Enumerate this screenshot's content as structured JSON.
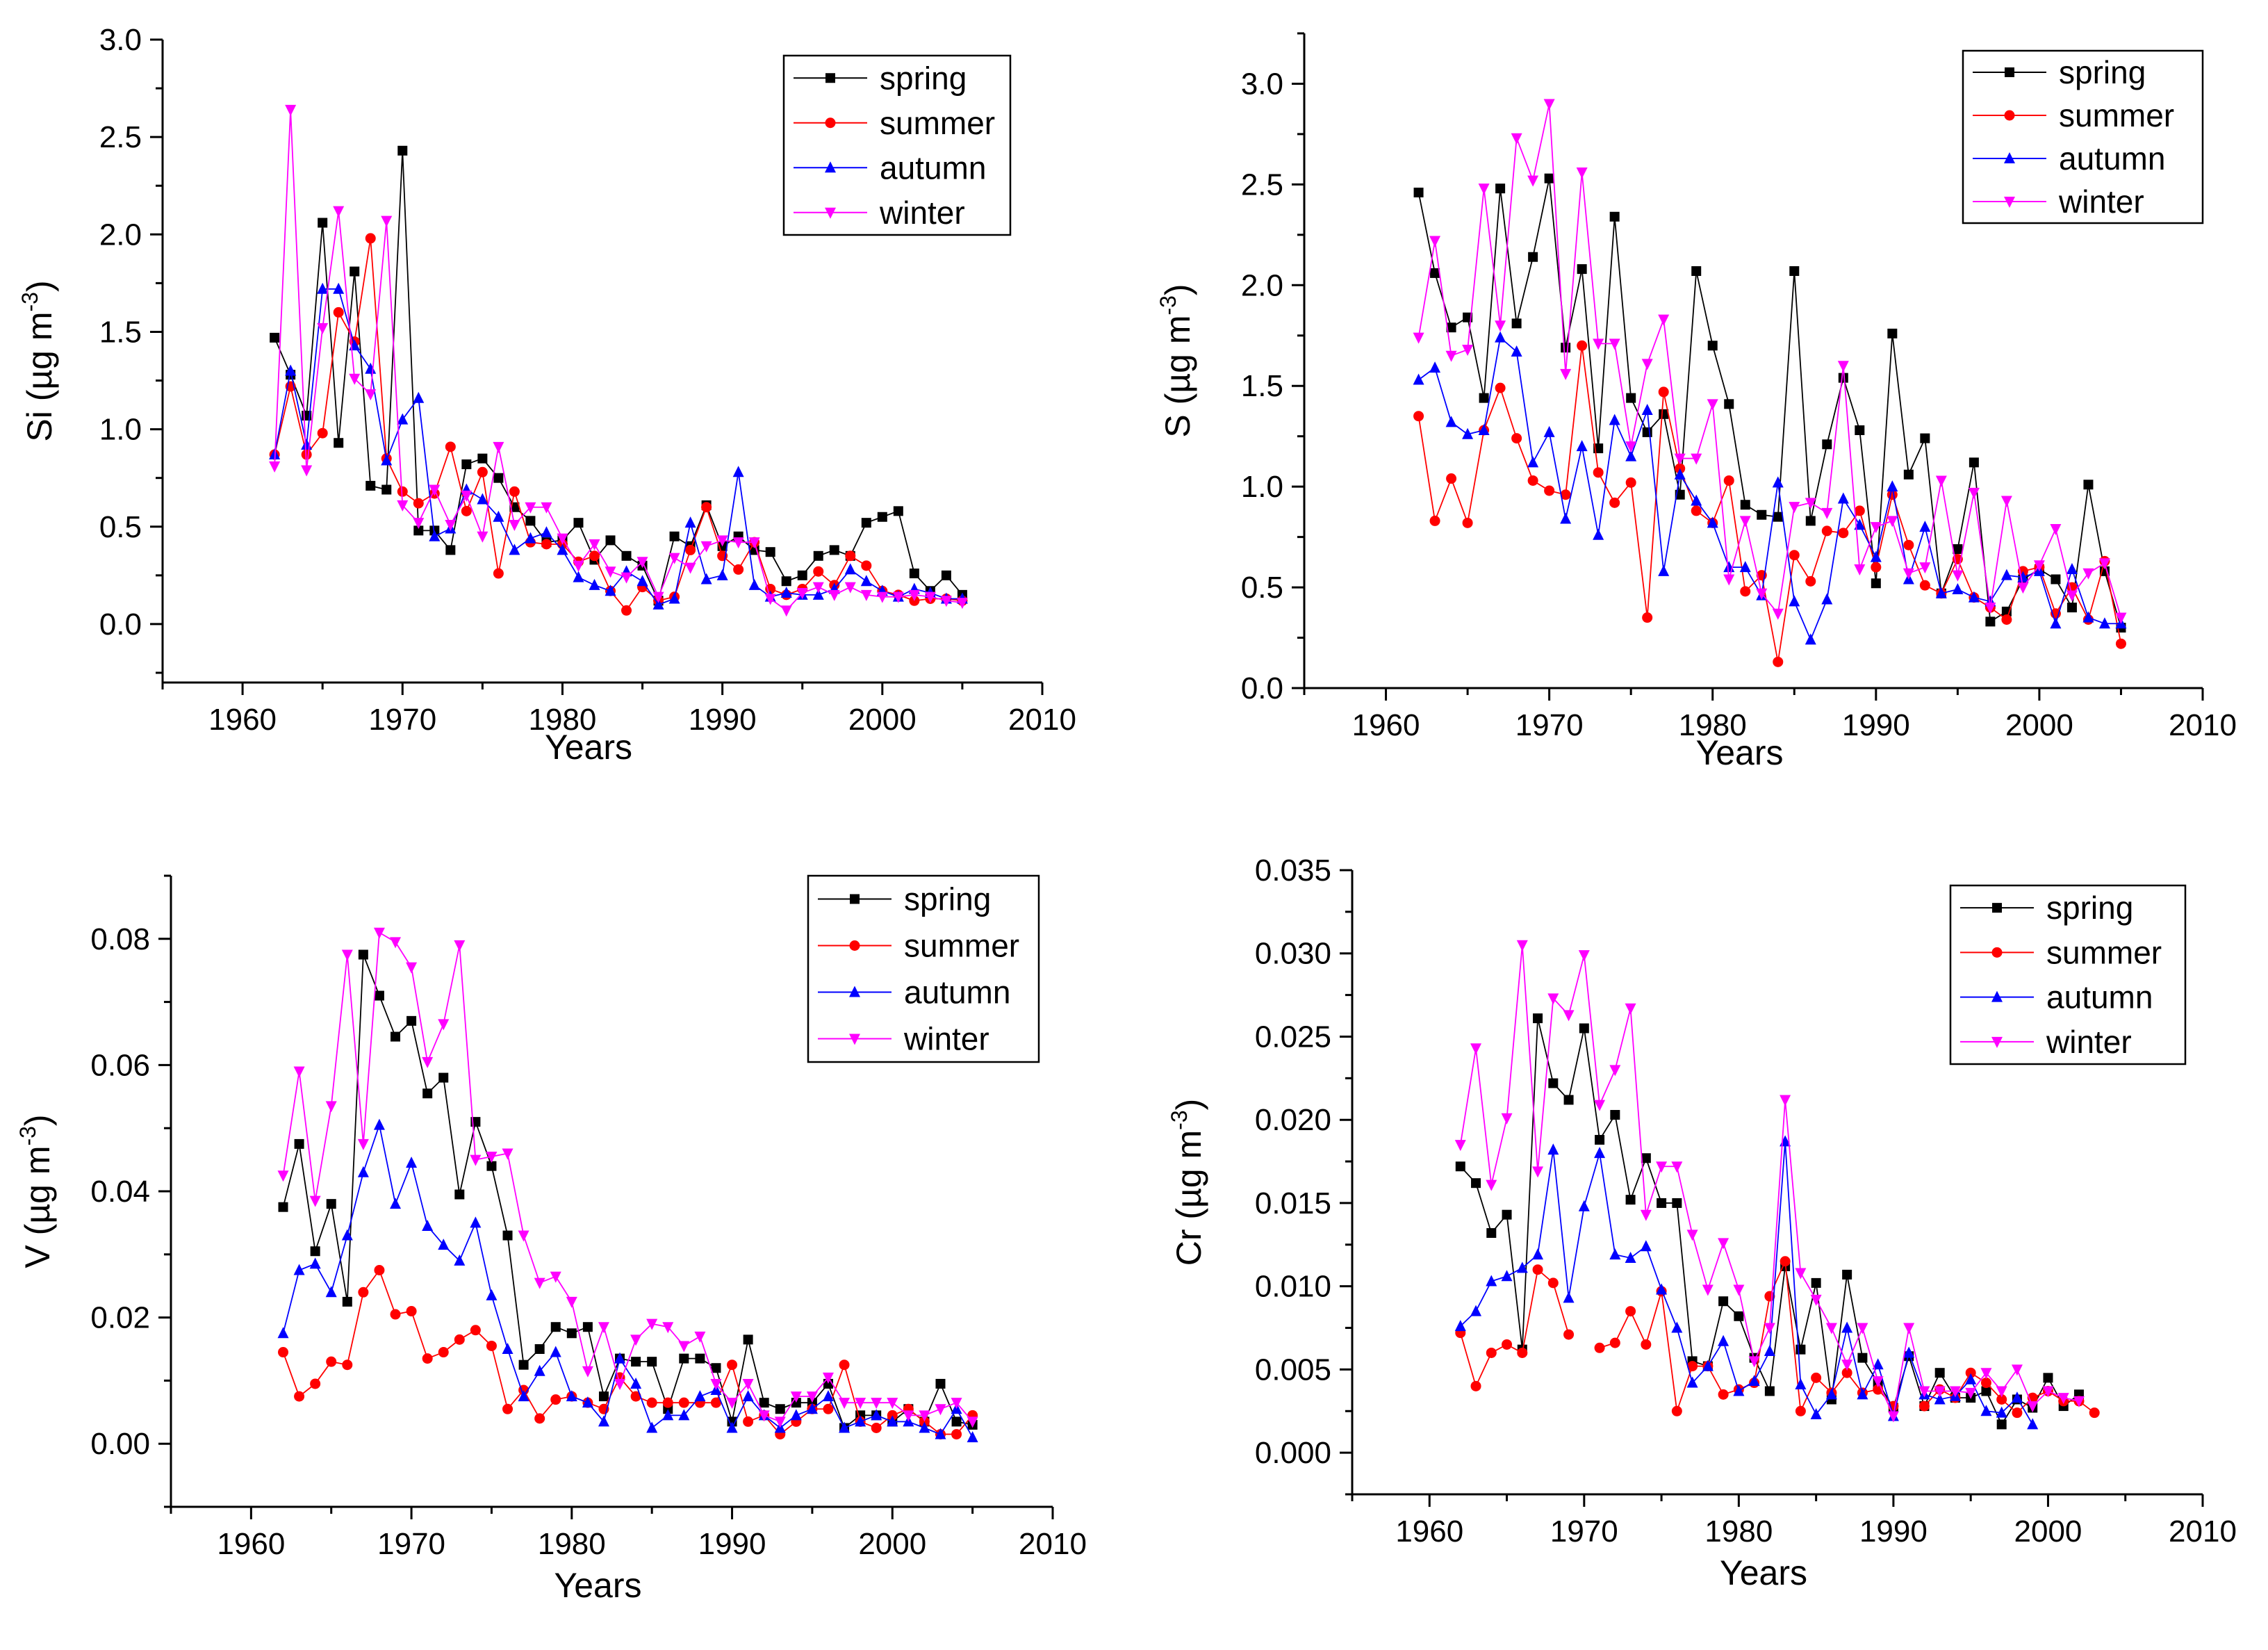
{
  "chart_data": [
    {
      "type": "line",
      "ylabel_main": "Si (µg m",
      "ylabel_sup": "-3",
      "ylabel_close": ")",
      "xlabel": "Years",
      "xlim": [
        1955,
        2010
      ],
      "ylim": [
        -0.3,
        3.0
      ],
      "xticks": [
        "1960",
        "1970",
        "1980",
        "1990",
        "2000",
        "2010"
      ],
      "yticks": [
        "0.0",
        "0.5",
        "1.0",
        "1.5",
        "2.0",
        "2.5",
        "3.0"
      ],
      "legend": [
        "spring",
        "summer",
        "autumn",
        "winter"
      ],
      "legend_position": "top-right",
      "x": [
        1962,
        1963,
        1964,
        1965,
        1966,
        1967,
        1968,
        1969,
        1970,
        1971,
        1972,
        1973,
        1974,
        1975,
        1976,
        1977,
        1978,
        1979,
        1980,
        1981,
        1982,
        1983,
        1984,
        1985,
        1986,
        1987,
        1988,
        1989,
        1990,
        1991,
        1992,
        1993,
        1994,
        1995,
        1996,
        1997,
        1998,
        1999,
        2000,
        2001,
        2002,
        2003,
        2004,
        2005
      ],
      "series": [
        {
          "name": "spring",
          "values": [
            1.47,
            1.28,
            1.07,
            2.06,
            0.93,
            1.81,
            0.71,
            0.69,
            2.43,
            0.48,
            0.48,
            0.38,
            0.82,
            0.85,
            0.75,
            0.6,
            0.53,
            0.42,
            0.43,
            0.52,
            0.33,
            0.43,
            0.35,
            0.3,
            0.12,
            0.45,
            0.4,
            0.61,
            0.4,
            0.45,
            0.38,
            0.37,
            0.22,
            0.25,
            0.35,
            0.38,
            0.35,
            0.52,
            0.55,
            0.58,
            0.26,
            0.17,
            0.25,
            0.15
          ]
        },
        {
          "name": "summer",
          "values": [
            0.87,
            1.22,
            0.87,
            0.98,
            1.6,
            1.45,
            1.98,
            0.85,
            0.68,
            0.62,
            0.67,
            0.91,
            0.58,
            0.78,
            0.26,
            0.68,
            0.42,
            0.41,
            0.41,
            0.32,
            0.35,
            0.17,
            0.07,
            0.19,
            0.12,
            0.14,
            0.38,
            0.6,
            0.35,
            0.28,
            0.42,
            0.18,
            0.15,
            0.18,
            0.27,
            0.2,
            0.35,
            0.3,
            0.17,
            0.15,
            0.12,
            0.13,
            0.13,
            0.12
          ]
        },
        {
          "name": "autumn",
          "values": [
            0.87,
            1.3,
            0.92,
            1.72,
            1.72,
            1.43,
            1.31,
            0.84,
            1.05,
            1.16,
            0.45,
            0.49,
            0.69,
            0.64,
            0.55,
            0.38,
            0.44,
            0.47,
            0.38,
            0.24,
            0.2,
            0.17,
            0.27,
            0.22,
            0.1,
            0.13,
            0.52,
            0.23,
            0.25,
            0.78,
            0.2,
            0.14,
            0.16,
            0.15,
            0.15,
            0.18,
            0.28,
            0.22,
            0.17,
            0.14,
            0.18,
            0.16,
            0.13,
            0.13
          ]
        },
        {
          "name": "winter",
          "values": [
            0.81,
            2.64,
            0.79,
            1.52,
            2.12,
            1.26,
            1.18,
            2.07,
            0.61,
            0.52,
            0.69,
            0.51,
            0.66,
            0.45,
            0.91,
            0.51,
            0.6,
            0.6,
            0.44,
            0.3,
            0.41,
            0.27,
            0.24,
            0.32,
            0.14,
            0.34,
            0.29,
            0.4,
            0.43,
            0.42,
            0.42,
            0.13,
            0.07,
            0.16,
            0.19,
            0.15,
            0.19,
            0.15,
            0.14,
            0.14,
            0.15,
            0.14,
            0.12,
            0.11
          ]
        }
      ]
    },
    {
      "type": "line",
      "ylabel_main": "S (µg m",
      "ylabel_sup": "-3",
      "ylabel_close": ")",
      "xlabel": "Years",
      "xlim": [
        1955,
        2010
      ],
      "ylim": [
        0.0,
        3.25
      ],
      "xticks": [
        "1960",
        "1970",
        "1980",
        "1990",
        "2000",
        "2010"
      ],
      "yticks": [
        "0.0",
        "0.5",
        "1.0",
        "1.5",
        "2.0",
        "2.5",
        "3.0"
      ],
      "legend": [
        "spring",
        "summer",
        "autumn",
        "winter"
      ],
      "legend_position": "top-right",
      "x": [
        1962,
        1963,
        1964,
        1965,
        1966,
        1967,
        1968,
        1969,
        1970,
        1971,
        1972,
        1973,
        1974,
        1975,
        1976,
        1977,
        1978,
        1979,
        1980,
        1981,
        1982,
        1983,
        1984,
        1985,
        1986,
        1987,
        1988,
        1989,
        1990,
        1991,
        1992,
        1993,
        1994,
        1995,
        1996,
        1997,
        1998,
        1999,
        2000,
        2001,
        2002,
        2003,
        2004,
        2005
      ],
      "series": [
        {
          "name": "spring",
          "values": [
            2.46,
            2.06,
            1.79,
            1.84,
            1.44,
            2.48,
            1.81,
            2.14,
            2.53,
            1.69,
            2.08,
            1.19,
            2.34,
            1.44,
            1.27,
            1.36,
            0.96,
            2.07,
            1.7,
            1.41,
            0.91,
            0.86,
            0.85,
            2.07,
            0.83,
            1.21,
            1.54,
            1.28,
            0.52,
            1.76,
            1.06,
            1.24,
            0.47,
            0.69,
            1.12,
            0.33,
            0.38,
            0.54,
            0.59,
            0.54,
            0.4,
            1.01,
            0.58,
            0.3
          ]
        },
        {
          "name": "summer",
          "values": [
            1.35,
            0.83,
            1.04,
            0.82,
            1.28,
            1.49,
            1.24,
            1.03,
            0.98,
            0.96,
            1.7,
            1.07,
            0.92,
            1.02,
            0.35,
            1.47,
            1.09,
            0.88,
            0.82,
            1.03,
            0.48,
            0.56,
            0.13,
            0.66,
            0.53,
            0.78,
            0.77,
            0.88,
            0.6,
            0.96,
            0.71,
            0.51,
            0.47,
            0.64,
            0.45,
            0.4,
            0.34,
            0.58,
            0.6,
            0.37,
            0.5,
            0.34,
            0.63,
            0.22
          ]
        },
        {
          "name": "autumn",
          "values": [
            1.53,
            1.59,
            1.32,
            1.26,
            1.28,
            1.74,
            1.67,
            1.12,
            1.27,
            0.84,
            1.2,
            0.76,
            1.33,
            1.15,
            1.38,
            0.58,
            1.06,
            0.93,
            0.82,
            0.6,
            0.6,
            0.46,
            1.02,
            0.43,
            0.24,
            0.44,
            0.94,
            0.81,
            0.65,
            1.0,
            0.54,
            0.8,
            0.47,
            0.49,
            0.45,
            0.43,
            0.56,
            0.55,
            0.58,
            0.32,
            0.59,
            0.35,
            0.32,
            0.32
          ]
        },
        {
          "name": "winter",
          "values": [
            1.74,
            2.22,
            1.65,
            1.68,
            2.48,
            1.8,
            2.73,
            2.52,
            2.9,
            1.56,
            2.56,
            1.71,
            1.71,
            1.2,
            1.61,
            1.83,
            1.14,
            1.14,
            1.41,
            0.54,
            0.83,
            0.47,
            0.37,
            0.9,
            0.92,
            0.87,
            1.6,
            0.59,
            0.8,
            0.83,
            0.57,
            0.6,
            1.03,
            0.56,
            0.97,
            0.4,
            0.93,
            0.5,
            0.61,
            0.79,
            0.46,
            0.57,
            0.62,
            0.35
          ]
        }
      ]
    },
    {
      "type": "line",
      "ylabel_main": "V (µg m",
      "ylabel_sup": "-3",
      "ylabel_close": ")",
      "xlabel": "Years",
      "xlim": [
        1955,
        2010
      ],
      "ylim": [
        -0.01,
        0.09
      ],
      "xticks": [
        "1960",
        "1970",
        "1980",
        "1990",
        "2000",
        "2010"
      ],
      "yticks": [
        "0.00",
        "0.02",
        "0.04",
        "0.06",
        "0.08"
      ],
      "legend": [
        "spring",
        "summer",
        "autumn",
        "winter"
      ],
      "legend_position": "top-right",
      "x": [
        1962,
        1963,
        1964,
        1965,
        1966,
        1967,
        1968,
        1969,
        1970,
        1971,
        1972,
        1973,
        1974,
        1975,
        1976,
        1977,
        1978,
        1979,
        1980,
        1981,
        1982,
        1983,
        1984,
        1985,
        1986,
        1987,
        1988,
        1989,
        1990,
        1991,
        1992,
        1993,
        1994,
        1995,
        1996,
        1997,
        1998,
        1999,
        2000,
        2001,
        2002,
        2003,
        2004,
        2005
      ],
      "series": [
        {
          "name": "spring",
          "values": [
            0.0375,
            0.0475,
            0.0305,
            0.038,
            0.0225,
            0.0775,
            0.071,
            0.0645,
            0.067,
            0.0555,
            0.058,
            0.0395,
            0.051,
            0.044,
            0.033,
            0.0125,
            0.015,
            0.0185,
            0.0175,
            0.0185,
            0.0075,
            0.0135,
            0.013,
            0.013,
            0.0055,
            0.0135,
            0.0135,
            0.012,
            0.0035,
            0.0165,
            0.0065,
            0.0055,
            0.0065,
            0.0065,
            0.0095,
            0.0025,
            0.0045,
            0.0045,
            0.0035,
            0.0055,
            0.0035,
            0.0095,
            0.0035,
            0.003
          ]
        },
        {
          "name": "summer",
          "values": [
            0.0145,
            0.0075,
            0.0095,
            0.013,
            0.0125,
            0.024,
            0.0275,
            0.0205,
            0.021,
            0.0135,
            0.0145,
            0.0165,
            0.018,
            0.0155,
            0.0055,
            0.0085,
            0.004,
            0.007,
            0.0075,
            0.0065,
            0.0055,
            0.0105,
            0.0075,
            0.0065,
            0.0065,
            0.0065,
            0.0065,
            0.0065,
            0.0125,
            0.0035,
            0.0045,
            0.0015,
            0.0035,
            0.0055,
            0.0055,
            0.0125,
            0.0035,
            0.0025,
            0.0045,
            0.0055,
            0.0035,
            0.0015,
            0.0015,
            0.0045
          ]
        },
        {
          "name": "autumn",
          "values": [
            0.0175,
            0.0275,
            0.0285,
            0.024,
            0.033,
            0.043,
            0.0505,
            0.038,
            0.0445,
            0.0345,
            0.0315,
            0.029,
            0.035,
            0.0235,
            0.015,
            0.0075,
            0.0115,
            0.0145,
            0.0075,
            0.0065,
            0.0035,
            0.0135,
            0.0095,
            0.0025,
            0.0045,
            0.0045,
            0.0075,
            0.0085,
            0.0025,
            0.0075,
            0.0045,
            0.0025,
            0.0045,
            0.0055,
            0.0075,
            0.0025,
            0.0035,
            0.0045,
            0.0035,
            0.0035,
            0.0025,
            0.0015,
            0.0055,
            0.001
          ]
        },
        {
          "name": "winter",
          "values": [
            0.0425,
            0.059,
            0.0385,
            0.0535,
            0.0775,
            0.0475,
            0.081,
            0.0795,
            0.0755,
            0.0605,
            0.0665,
            0.079,
            0.045,
            0.0455,
            0.046,
            0.033,
            0.0255,
            0.0265,
            0.0225,
            0.0115,
            0.0185,
            0.0095,
            0.0165,
            0.019,
            0.0185,
            0.0155,
            0.017,
            0.0095,
            0.0065,
            0.0095,
            0.0045,
            0.0035,
            0.0075,
            0.0075,
            0.0105,
            0.0065,
            0.0065,
            0.0065,
            0.0065,
            0.0045,
            0.0045,
            0.0055,
            0.0065,
            0.0035
          ]
        }
      ]
    },
    {
      "type": "line",
      "ylabel_main": "Cr (µg m",
      "ylabel_sup": "-3",
      "ylabel_close": ")",
      "xlabel": "Years",
      "xlim": [
        1955,
        2010
      ],
      "ylim": [
        -0.0025,
        0.035
      ],
      "xticks": [
        "1960",
        "1970",
        "1980",
        "1990",
        "2000",
        "2010"
      ],
      "yticks": [
        "0.000",
        "0.005",
        "0.010",
        "0.015",
        "0.020",
        "0.025",
        "0.030",
        "0.035"
      ],
      "legend": [
        "spring",
        "summer",
        "autumn",
        "winter"
      ],
      "legend_position": "top-right",
      "x": [
        1962,
        1963,
        1964,
        1965,
        1966,
        1967,
        1968,
        1969,
        1970,
        1971,
        1972,
        1973,
        1974,
        1975,
        1976,
        1977,
        1978,
        1979,
        1980,
        1981,
        1982,
        1983,
        1984,
        1985,
        1986,
        1987,
        1988,
        1989,
        1990,
        1991,
        1992,
        1993,
        1994,
        1995,
        1996,
        1997,
        1998,
        1999,
        2000,
        2001,
        2002,
        2003
      ],
      "series": [
        {
          "name": "spring",
          "values": [
            0.0172,
            0.0162,
            0.0132,
            0.0143,
            0.0062,
            0.0261,
            0.0222,
            0.0212,
            0.0255,
            0.0188,
            0.0203,
            0.0152,
            0.0177,
            0.015,
            0.015,
            0.0055,
            0.0052,
            0.0091,
            0.0082,
            0.0057,
            0.0037,
            0.0112,
            0.0062,
            0.0102,
            0.0032,
            0.0107,
            0.0057,
            0.0042,
            0.0027,
            0.0058,
            0.0028,
            0.0048,
            0.0033,
            0.0033,
            0.0037,
            0.0017,
            0.0032,
            0.0027,
            0.0045,
            0.0028,
            0.0035,
            null
          ]
        },
        {
          "name": "summer",
          "values": [
            0.0072,
            0.004,
            0.006,
            0.0065,
            0.006,
            0.011,
            0.0102,
            0.0071,
            null,
            0.0063,
            0.0066,
            0.0085,
            0.0065,
            0.0097,
            0.0025,
            0.0052,
            0.0052,
            0.0035,
            0.0038,
            0.0042,
            0.0094,
            0.0115,
            0.0025,
            0.0045,
            0.0036,
            0.0048,
            0.0036,
            0.0038,
            0.0028,
            null,
            0.0028,
            0.0038,
            0.0033,
            0.0048,
            0.0042,
            0.0032,
            0.0024,
            0.0033,
            0.0037,
            0.0031,
            0.0031,
            0.0024
          ]
        },
        {
          "name": "autumn",
          "values": [
            0.0076,
            0.0085,
            0.0103,
            0.0106,
            0.0111,
            0.0119,
            0.0182,
            0.0093,
            0.0148,
            0.018,
            0.0119,
            0.0117,
            0.0124,
            0.0098,
            0.0075,
            0.0042,
            0.0052,
            0.0067,
            0.0037,
            0.0043,
            0.0061,
            0.0187,
            0.0041,
            0.0023,
            0.0035,
            0.0075,
            0.0035,
            0.0053,
            0.0022,
            0.006,
            0.0035,
            0.0032,
            0.0034,
            0.0044,
            0.0025,
            0.0024,
            0.0033,
            0.0017,
            null,
            null,
            null,
            null
          ]
        },
        {
          "name": "winter",
          "values": [
            0.0185,
            0.0243,
            0.0161,
            0.0201,
            0.0305,
            0.0169,
            0.0273,
            0.0263,
            0.0299,
            0.0209,
            0.023,
            0.0267,
            0.0143,
            0.0172,
            0.0172,
            0.0131,
            0.0098,
            0.0126,
            0.0098,
            0.0055,
            0.0075,
            0.0212,
            0.0108,
            0.0092,
            0.0075,
            0.0053,
            0.0075,
            0.0043,
            0.0022,
            0.0075,
            0.0037,
            0.0037,
            0.0037,
            0.0036,
            0.0048,
            0.0037,
            0.005,
            0.0028,
            0.0037,
            0.0033,
            0.0031,
            null
          ]
        }
      ]
    }
  ],
  "series_colors": {
    "spring": "#000000",
    "summer": "#ff0000",
    "autumn": "#0000ff",
    "winter": "#ff00ff"
  },
  "series_markers": {
    "spring": "square",
    "summer": "circle",
    "autumn": "triangle-up",
    "winter": "triangle-down"
  }
}
